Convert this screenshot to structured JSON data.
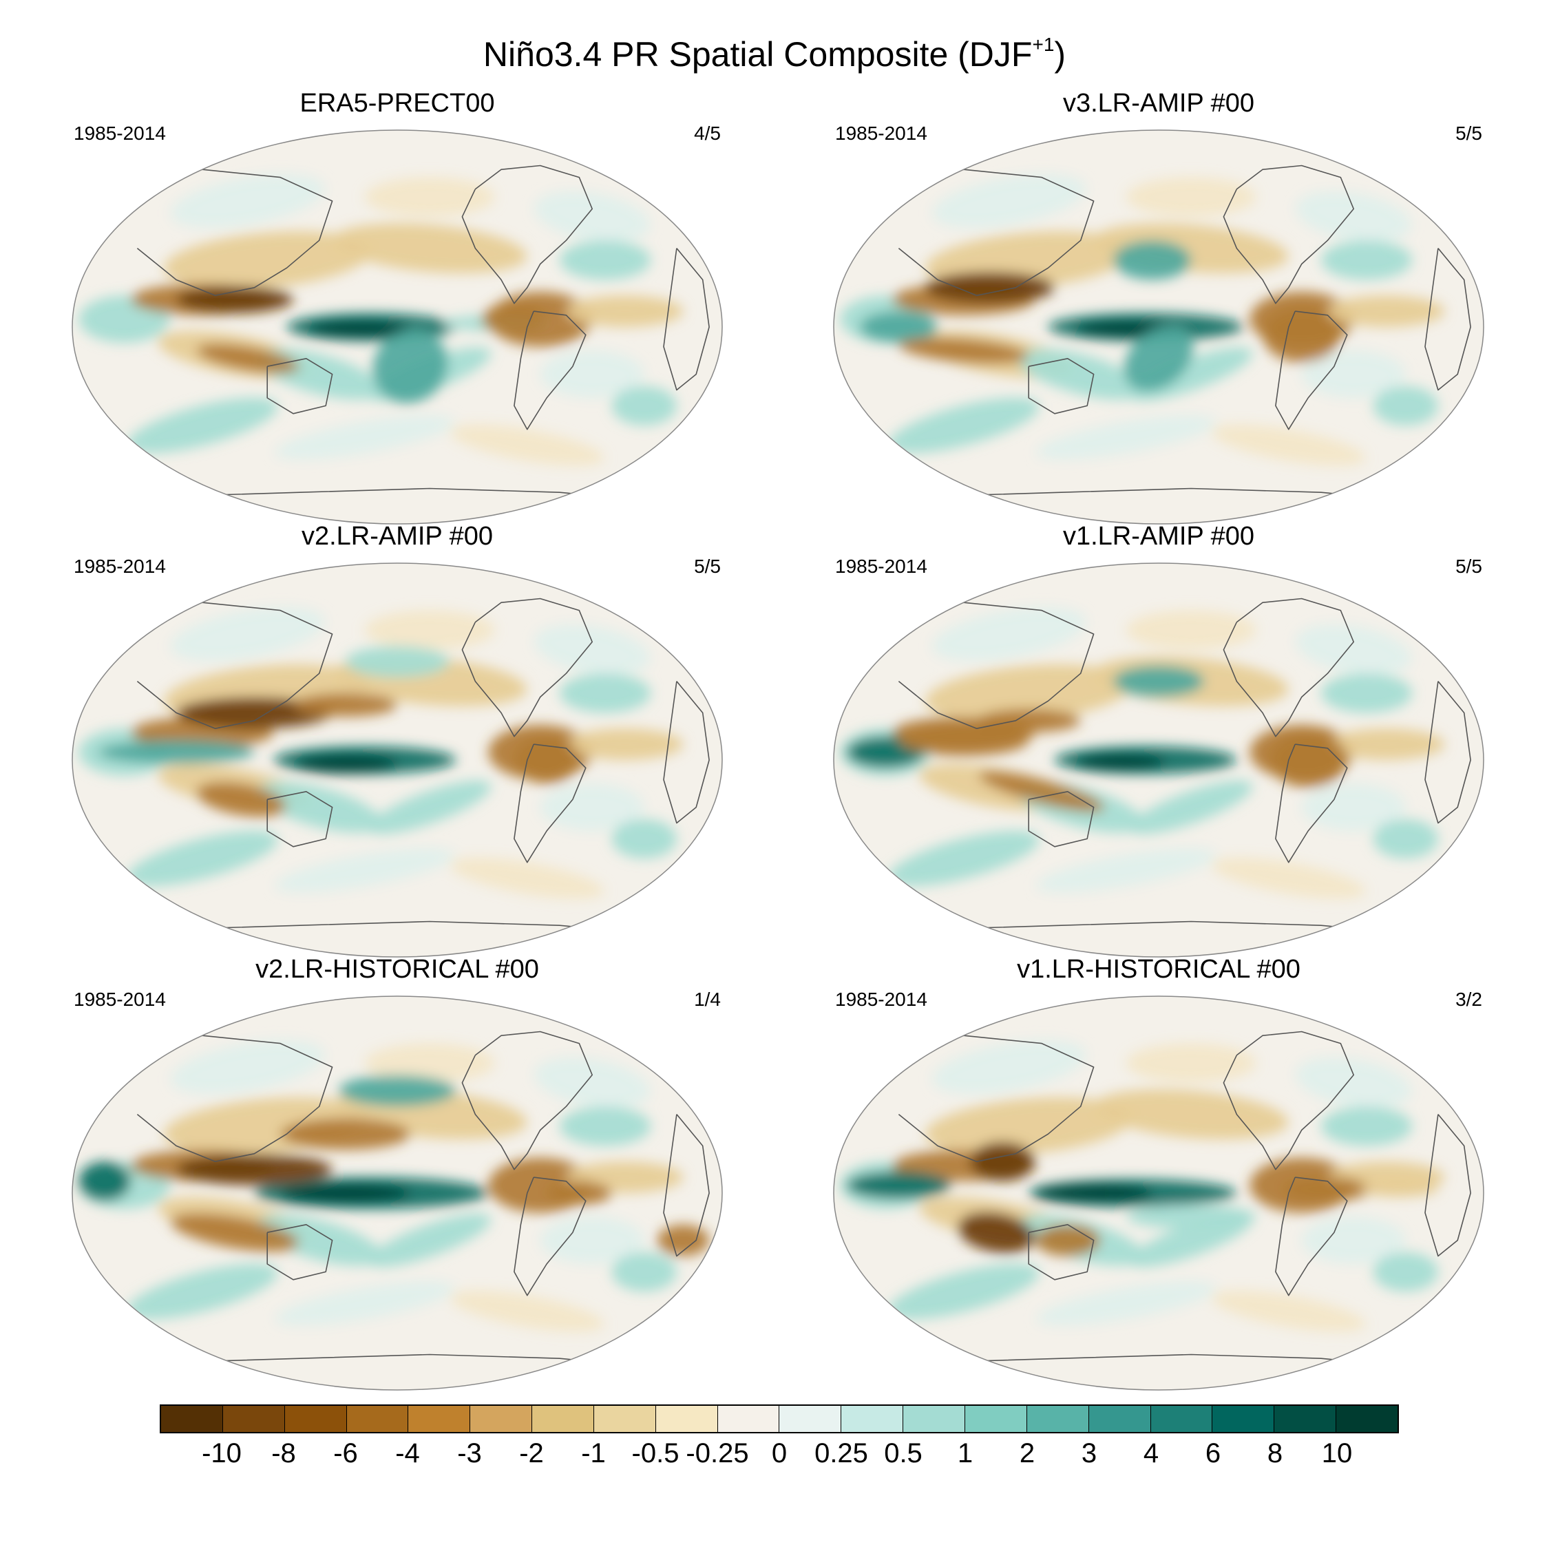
{
  "figure": {
    "title_main": "Niño3.4 PR Spatial Composite (DJF",
    "title_sup": "+1",
    "title_end": ")"
  },
  "panels": [
    {
      "title": "ERA5-PRECT00",
      "period": "1985-2014",
      "ratio": "4/5",
      "variant": 0
    },
    {
      "title": "v3.LR-AMIP  #00",
      "period": "1985-2014",
      "ratio": "5/5",
      "variant": 1
    },
    {
      "title": "v2.LR-AMIP  #00",
      "period": "1985-2014",
      "ratio": "5/5",
      "variant": 2
    },
    {
      "title": "v1.LR-AMIP  #00",
      "period": "1985-2014",
      "ratio": "5/5",
      "variant": 3
    },
    {
      "title": "v2.LR-HISTORICAL  #00",
      "period": "1985-2014",
      "ratio": "1/4",
      "variant": 4
    },
    {
      "title": "v1.LR-HISTORICAL  #00",
      "period": "1985-2014",
      "ratio": "3/2",
      "variant": 5
    }
  ],
  "colorbar": {
    "colors": [
      "#543005",
      "#7a470c",
      "#8c510a",
      "#a66a1c",
      "#bf812d",
      "#d4a55e",
      "#dfc27d",
      "#ead59f",
      "#f6e8c3",
      "#f5f1ea",
      "#e9f3f1",
      "#c7eae5",
      "#a4dcd3",
      "#80cdc1",
      "#58b3a8",
      "#35978f",
      "#1d8077",
      "#01665e",
      "#024f44",
      "#003c30"
    ],
    "labels": [
      "-10",
      "-8",
      "-6",
      "-4",
      "-3",
      "-2",
      "-1",
      "-0.5",
      "-0.25",
      "0",
      "0.25",
      "0.5",
      "1",
      "2",
      "3",
      "4",
      "6",
      "8",
      "10"
    ]
  },
  "palette": {
    "dry_strong": "#6b3d0a",
    "dry_mid": "#b07a33",
    "dry_light": "#e6cc94",
    "dry_faint": "#f3e6c8",
    "neutral": "#f4f1ea",
    "wet_faint": "#dff0ec",
    "wet_light": "#a4dcd3",
    "wet_mid": "#4ea89d",
    "wet_strong": "#0e6e63",
    "wet_deep": "#01443b",
    "coast": "#555555",
    "outline": "#888888"
  }
}
